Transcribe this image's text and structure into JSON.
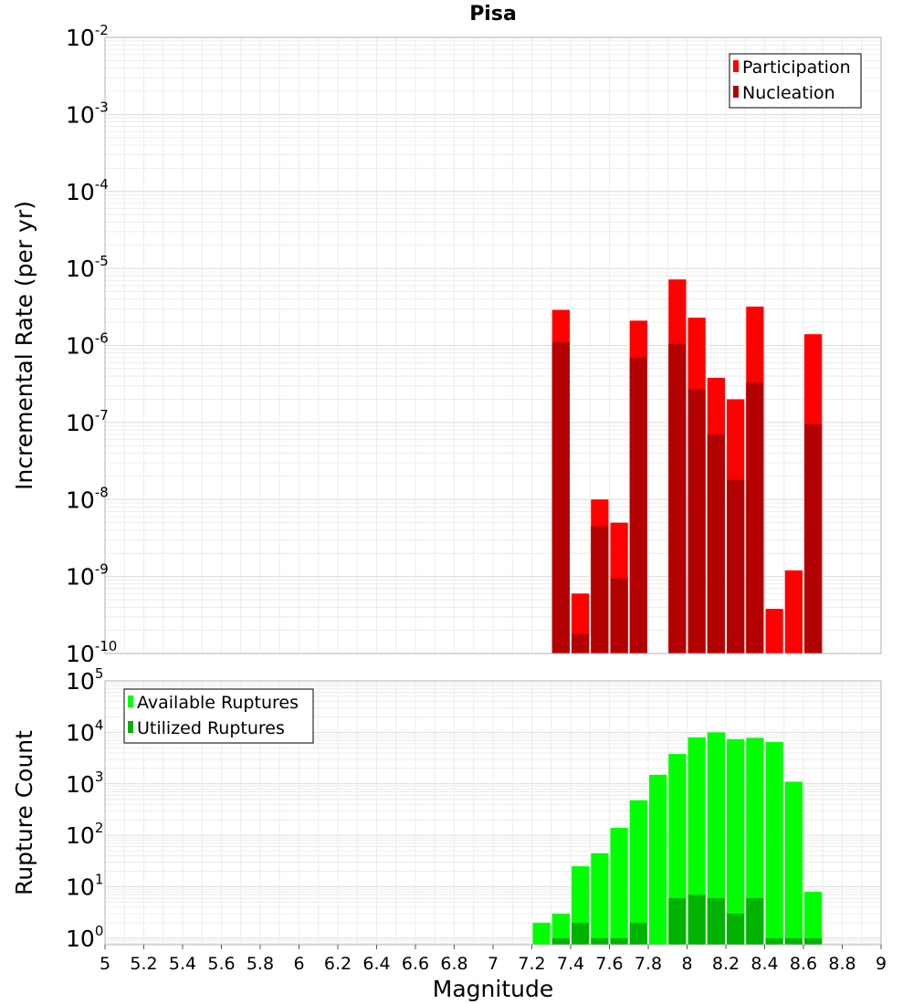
{
  "chart_data": [
    {
      "type": "bar",
      "title": "Pisa",
      "xlabel": "",
      "ylabel": "Incremental Rate (per yr)",
      "yscale": "log",
      "xlim": [
        5,
        9
      ],
      "ylim": [
        1e-10,
        0.01
      ],
      "y_ticks": [
        {
          "base": "10",
          "exp": "-10"
        },
        {
          "base": "10",
          "exp": "-9"
        },
        {
          "base": "10",
          "exp": "-8"
        },
        {
          "base": "10",
          "exp": "-7"
        },
        {
          "base": "10",
          "exp": "-6"
        },
        {
          "base": "10",
          "exp": "-5"
        },
        {
          "base": "10",
          "exp": "-4"
        },
        {
          "base": "10",
          "exp": "-3"
        },
        {
          "base": "10",
          "exp": "-2"
        }
      ],
      "grid": true,
      "legend_position": "top-right",
      "series": [
        {
          "name": "Participation",
          "color": "#ff0000",
          "x": [
            7.35,
            7.45,
            7.55,
            7.65,
            7.75,
            7.95,
            8.05,
            8.15,
            8.25,
            8.35,
            8.45,
            8.55,
            8.65
          ],
          "values": [
            2.9e-06,
            6e-10,
            1e-08,
            5e-09,
            2.1e-06,
            7.2e-06,
            2.3e-06,
            3.8e-07,
            2e-07,
            3.2e-06,
            3.8e-10,
            1.2e-09,
            1.4e-06
          ]
        },
        {
          "name": "Nucleation",
          "color": "#b30000",
          "x": [
            7.35,
            7.45,
            7.55,
            7.65,
            7.75,
            7.95,
            8.05,
            8.15,
            8.25,
            8.35,
            8.65
          ],
          "values": [
            1.1e-06,
            1.8e-10,
            4.5e-09,
            9.5e-10,
            7e-07,
            1.05e-06,
            2.7e-07,
            7e-08,
            1.8e-08,
            3.3e-07,
            9.5e-08
          ]
        }
      ]
    },
    {
      "type": "bar",
      "title": "",
      "xlabel": "Magnitude",
      "ylabel": "Rupture Count",
      "yscale": "log",
      "xlim": [
        5,
        9
      ],
      "ylim": [
        0.75,
        100000
      ],
      "y_ticks": [
        {
          "base": "10",
          "exp": "0"
        },
        {
          "base": "10",
          "exp": "1"
        },
        {
          "base": "10",
          "exp": "2"
        },
        {
          "base": "10",
          "exp": "3"
        },
        {
          "base": "10",
          "exp": "4"
        },
        {
          "base": "10",
          "exp": "5"
        }
      ],
      "x_ticks": [
        "5",
        "5.2",
        "5.4",
        "5.6",
        "5.8",
        "6",
        "6.2",
        "6.4",
        "6.6",
        "6.8",
        "7",
        "7.2",
        "7.4",
        "7.6",
        "7.8",
        "8",
        "8.2",
        "8.4",
        "8.6",
        "8.8",
        "9"
      ],
      "grid": true,
      "legend_position": "top-left",
      "series": [
        {
          "name": "Available Ruptures",
          "color": "#00ff00",
          "x": [
            7.25,
            7.35,
            7.45,
            7.55,
            7.65,
            7.75,
            7.85,
            7.95,
            8.05,
            8.15,
            8.25,
            8.35,
            8.45,
            8.55,
            8.65
          ],
          "values": [
            2,
            3,
            25,
            45,
            140,
            480,
            1500,
            3800,
            8000,
            10000,
            7400,
            7800,
            6500,
            1100,
            8
          ]
        },
        {
          "name": "Utilized Ruptures",
          "color": "#00b300",
          "x": [
            7.35,
            7.45,
            7.55,
            7.65,
            7.75,
            7.95,
            8.05,
            8.15,
            8.25,
            8.35,
            8.45,
            8.55,
            8.65
          ],
          "values": [
            1,
            2,
            1,
            1,
            2,
            6,
            7,
            6,
            3,
            6,
            1,
            1,
            1
          ]
        }
      ]
    }
  ]
}
